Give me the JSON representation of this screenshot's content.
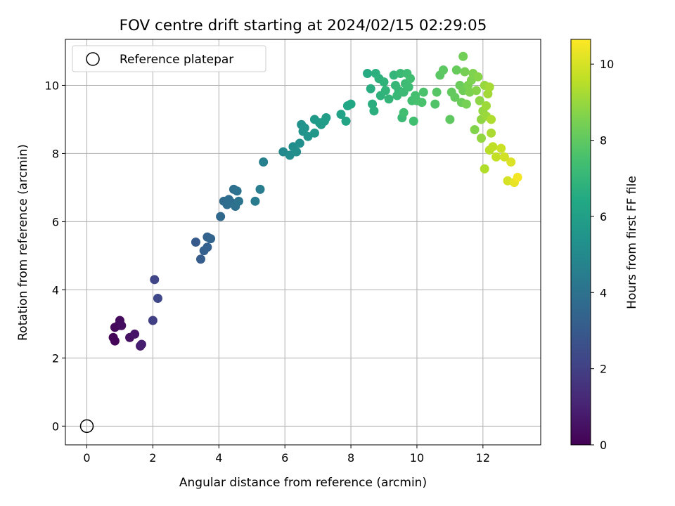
{
  "chart_data": {
    "type": "scatter",
    "title": "FOV centre drift starting at 2024/02/15 02:29:05",
    "xlabel": "Angular distance from reference (arcmin)",
    "ylabel": "Rotation from reference (arcmin)",
    "xlim": [
      -0.65,
      13.75
    ],
    "ylim": [
      -0.55,
      11.35
    ],
    "xticks": [
      0,
      2,
      4,
      6,
      8,
      10,
      12
    ],
    "yticks": [
      0,
      2,
      4,
      6,
      8,
      10
    ],
    "grid": true,
    "legend": {
      "placement": "upper-left",
      "entries": [
        "Reference platepar"
      ]
    },
    "reference_point": {
      "x": 0,
      "y": 0,
      "label": "Reference platepar"
    },
    "colorbar": {
      "label": "Hours from first FF file",
      "colormap": "viridis",
      "range": [
        0,
        10.65
      ],
      "ticks": [
        0,
        2,
        4,
        6,
        8,
        10
      ]
    },
    "points": [
      [
        0.8,
        2.6,
        0.1
      ],
      [
        0.85,
        2.5,
        0.15
      ],
      [
        0.85,
        2.9,
        0.2
      ],
      [
        0.95,
        2.95,
        0.25
      ],
      [
        1.0,
        3.1,
        0.3
      ],
      [
        1.05,
        2.95,
        0.35
      ],
      [
        1.3,
        2.6,
        0.5
      ],
      [
        1.45,
        2.7,
        0.6
      ],
      [
        1.62,
        2.35,
        0.8
      ],
      [
        1.66,
        2.4,
        0.9
      ],
      [
        2.0,
        3.1,
        2.0
      ],
      [
        2.05,
        4.3,
        2.2
      ],
      [
        2.15,
        3.75,
        2.3
      ],
      [
        3.3,
        5.4,
        3.0
      ],
      [
        3.45,
        4.9,
        3.1
      ],
      [
        3.55,
        5.15,
        3.2
      ],
      [
        3.65,
        5.25,
        3.3
      ],
      [
        3.65,
        5.55,
        3.35
      ],
      [
        3.75,
        5.5,
        3.4
      ],
      [
        4.05,
        6.15,
        3.6
      ],
      [
        4.15,
        6.6,
        3.7
      ],
      [
        4.25,
        6.5,
        3.75
      ],
      [
        4.3,
        6.65,
        3.8
      ],
      [
        4.4,
        6.55,
        3.85
      ],
      [
        4.45,
        6.95,
        3.9
      ],
      [
        4.5,
        6.45,
        3.95
      ],
      [
        4.55,
        6.9,
        4.0
      ],
      [
        4.6,
        6.6,
        4.05
      ],
      [
        5.1,
        6.6,
        4.4
      ],
      [
        5.25,
        6.95,
        4.5
      ],
      [
        5.35,
        7.75,
        4.6
      ],
      [
        5.95,
        8.05,
        5.0
      ],
      [
        6.15,
        7.95,
        5.1
      ],
      [
        6.25,
        8.2,
        5.2
      ],
      [
        6.35,
        8.05,
        5.25
      ],
      [
        6.45,
        8.3,
        5.3
      ],
      [
        6.5,
        8.85,
        5.35
      ],
      [
        6.55,
        8.65,
        5.4
      ],
      [
        6.6,
        8.75,
        5.45
      ],
      [
        6.7,
        8.5,
        5.5
      ],
      [
        6.9,
        8.6,
        5.6
      ],
      [
        6.9,
        9.0,
        5.7
      ],
      [
        7.05,
        8.9,
        5.75
      ],
      [
        7.1,
        8.85,
        5.8
      ],
      [
        7.2,
        8.95,
        5.85
      ],
      [
        7.25,
        9.05,
        5.9
      ],
      [
        7.7,
        9.15,
        6.1
      ],
      [
        7.85,
        8.95,
        6.2
      ],
      [
        7.9,
        9.4,
        6.3
      ],
      [
        8.0,
        9.45,
        6.35
      ],
      [
        8.5,
        10.35,
        6.5
      ],
      [
        8.6,
        9.9,
        6.6
      ],
      [
        8.65,
        9.45,
        6.65
      ],
      [
        8.7,
        9.25,
        6.7
      ],
      [
        8.75,
        10.35,
        6.7
      ],
      [
        8.85,
        10.2,
        6.75
      ],
      [
        8.9,
        9.7,
        6.8
      ],
      [
        9.0,
        10.1,
        6.85
      ],
      [
        9.05,
        9.85,
        6.9
      ],
      [
        9.15,
        9.6,
        6.95
      ],
      [
        9.3,
        10.3,
        7.0
      ],
      [
        9.35,
        10.0,
        7.05
      ],
      [
        9.4,
        9.7,
        7.1
      ],
      [
        9.45,
        9.85,
        7.1
      ],
      [
        9.5,
        10.35,
        7.15
      ],
      [
        9.55,
        9.05,
        7.2
      ],
      [
        9.6,
        9.8,
        7.2
      ],
      [
        9.65,
        10.05,
        7.25
      ],
      [
        9.7,
        10.35,
        7.3
      ],
      [
        9.75,
        9.95,
        7.3
      ],
      [
        9.6,
        9.2,
        7.35
      ],
      [
        9.8,
        10.2,
        7.35
      ],
      [
        9.85,
        9.55,
        7.4
      ],
      [
        9.9,
        8.95,
        7.4
      ],
      [
        9.95,
        9.7,
        7.45
      ],
      [
        10.0,
        9.55,
        7.5
      ],
      [
        10.15,
        9.5,
        7.55
      ],
      [
        10.2,
        9.8,
        7.6
      ],
      [
        10.55,
        9.45,
        7.7
      ],
      [
        10.6,
        9.8,
        7.8
      ],
      [
        10.7,
        10.3,
        7.9
      ],
      [
        10.8,
        10.45,
        7.95
      ],
      [
        11.0,
        9.0,
        8.0
      ],
      [
        11.05,
        9.8,
        8.05
      ],
      [
        11.15,
        9.65,
        8.1
      ],
      [
        11.2,
        10.45,
        8.15
      ],
      [
        11.3,
        10.0,
        8.2
      ],
      [
        11.35,
        9.5,
        8.25
      ],
      [
        11.4,
        9.85,
        8.3
      ],
      [
        11.4,
        10.85,
        8.35
      ],
      [
        11.45,
        10.4,
        8.4
      ],
      [
        11.5,
        9.45,
        8.45
      ],
      [
        11.55,
        10.0,
        8.5
      ],
      [
        11.6,
        9.8,
        8.55
      ],
      [
        11.65,
        10.15,
        8.55
      ],
      [
        11.7,
        10.35,
        8.6
      ],
      [
        11.75,
        8.7,
        8.65
      ],
      [
        11.8,
        9.85,
        8.7
      ],
      [
        11.85,
        10.25,
        8.75
      ],
      [
        11.9,
        9.55,
        8.8
      ],
      [
        11.95,
        9.0,
        8.85
      ],
      [
        11.95,
        8.45,
        8.9
      ],
      [
        12.0,
        9.25,
        8.95
      ],
      [
        12.05,
        10.0,
        9.0
      ],
      [
        12.1,
        9.1,
        9.05
      ],
      [
        12.1,
        9.4,
        9.1
      ],
      [
        12.15,
        9.75,
        9.15
      ],
      [
        12.2,
        9.95,
        9.2
      ],
      [
        12.25,
        8.6,
        9.3
      ],
      [
        12.25,
        9.0,
        9.35
      ],
      [
        12.05,
        7.55,
        9.4
      ],
      [
        12.2,
        8.1,
        9.5
      ],
      [
        12.3,
        8.2,
        9.6
      ],
      [
        12.4,
        7.9,
        9.7
      ],
      [
        12.55,
        8.15,
        9.8
      ],
      [
        12.65,
        7.9,
        9.9
      ],
      [
        12.75,
        7.2,
        10.0
      ],
      [
        12.85,
        7.75,
        10.1
      ],
      [
        12.95,
        7.15,
        10.3
      ],
      [
        13.05,
        7.3,
        10.5
      ]
    ]
  }
}
